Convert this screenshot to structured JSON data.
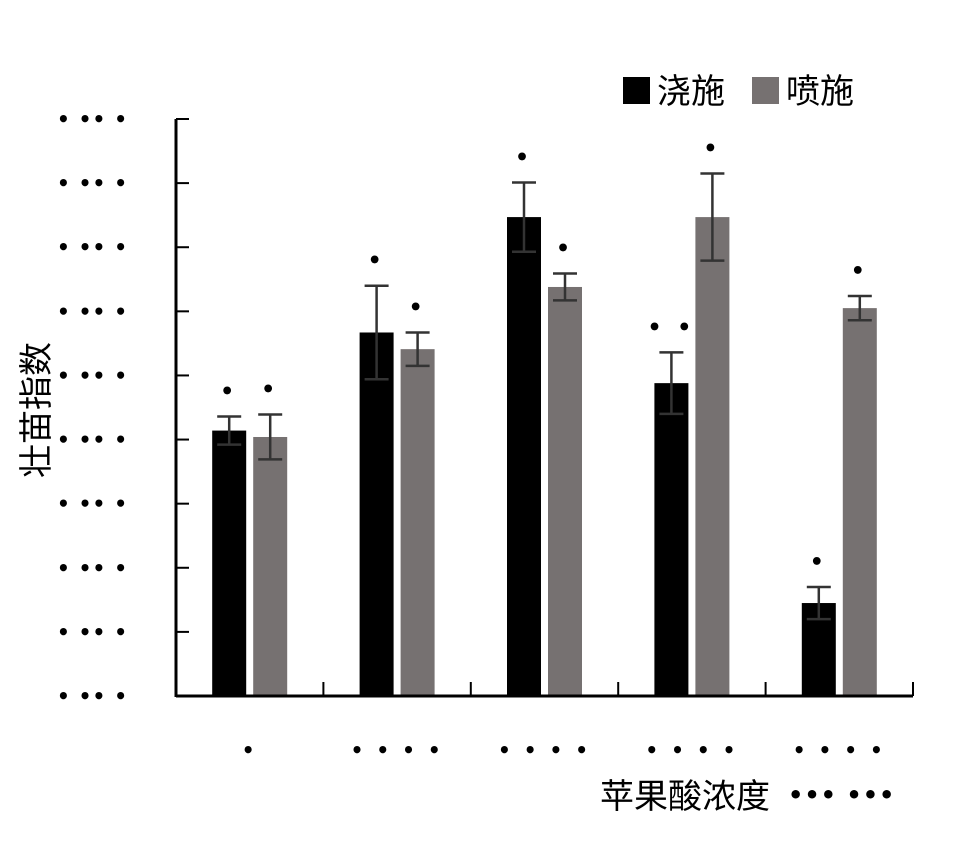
{
  "chart_data": {
    "type": "bar",
    "ylabel": "壮苗指数",
    "xlabel": "苹果酸浓度",
    "xlabel_unit": "••• •••",
    "ylim": [
      0,
      9
    ],
    "y_tick_values": [
      0,
      1,
      2,
      3,
      4,
      5,
      6,
      7,
      8,
      9
    ],
    "y_tick_labels": [
      "• •• •",
      "• •• •",
      "• •• •",
      "• •• •",
      "• •• •",
      "• •• •",
      "• •• •",
      "• •• •",
      "• •• •",
      "• •• •"
    ],
    "categories": [
      "•",
      "• • • •",
      "• • • •",
      "• • • •",
      "• • • •"
    ],
    "legend_position": "top-right",
    "grid": false,
    "series": [
      {
        "name": "浇施",
        "color": "#000000",
        "values": [
          4.14,
          5.67,
          7.47,
          4.88,
          1.45
        ],
        "errors": [
          0.22,
          0.73,
          0.54,
          0.48,
          0.25
        ],
        "letters": [
          "•",
          "•",
          "•",
          "• •",
          "•"
        ]
      },
      {
        "name": "喷施",
        "color": "#767171",
        "values": [
          4.04,
          5.41,
          6.38,
          7.47,
          6.05
        ],
        "errors": [
          0.35,
          0.26,
          0.21,
          0.68,
          0.19
        ],
        "letters": [
          "•",
          "•",
          "•",
          "•",
          "•"
        ]
      }
    ]
  }
}
